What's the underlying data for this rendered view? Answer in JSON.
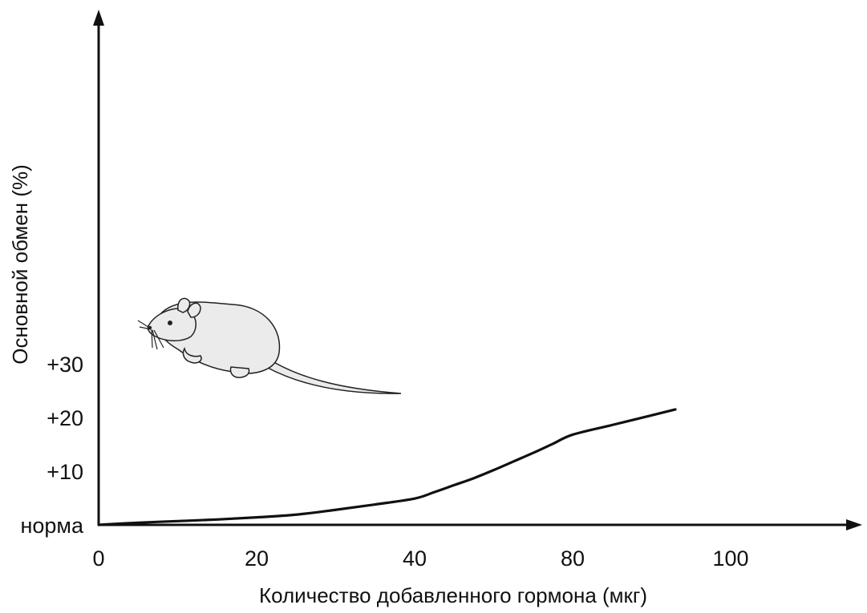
{
  "chart_data": {
    "type": "line",
    "title": "",
    "xlabel": "Количество добавленного гормона (мкг)",
    "ylabel": "Основной обмен (%)",
    "x_ticks": [
      {
        "label": "0",
        "value": 0
      },
      {
        "label": "20",
        "value": 20
      },
      {
        "label": "40",
        "value": 40
      },
      {
        "label": "80",
        "value": 80
      },
      {
        "label": "100",
        "value": 100
      }
    ],
    "y_ticks": [
      {
        "label": "норма",
        "value": 0
      },
      {
        "label": "+10",
        "value": 10
      },
      {
        "label": "+20",
        "value": 20
      },
      {
        "label": "+30",
        "value": 30
      }
    ],
    "series": [
      {
        "points": [
          [
            0,
            0
          ],
          [
            5,
            0.4
          ],
          [
            10,
            0.7
          ],
          [
            15,
            1.0
          ],
          [
            20,
            1.4
          ],
          [
            25,
            1.9
          ],
          [
            30,
            2.8
          ],
          [
            35,
            3.8
          ],
          [
            40,
            4.9
          ],
          [
            45,
            6.1
          ],
          [
            50,
            7.4
          ],
          [
            55,
            8.7
          ],
          [
            60,
            10.2
          ],
          [
            65,
            11.8
          ],
          [
            70,
            13.4
          ],
          [
            75,
            15.1
          ],
          [
            80,
            16.8
          ],
          [
            85,
            18.6
          ],
          [
            90,
            20.4
          ],
          [
            93,
            21.5
          ]
        ]
      }
    ],
    "annotations": [
      {
        "type": "illustration",
        "icon": "mouse-icon"
      }
    ],
    "grid": false
  }
}
